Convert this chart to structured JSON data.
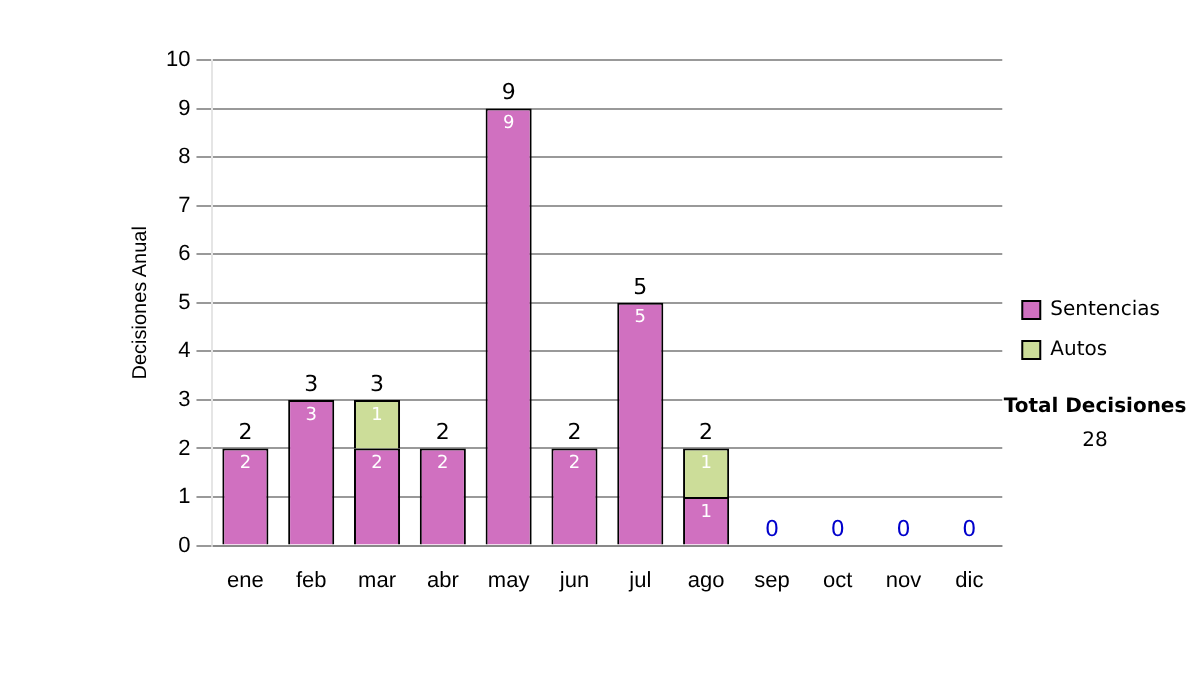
{
  "chart_data": {
    "type": "bar",
    "stacked": true,
    "ylabel": "Decisiones Anual",
    "categories": [
      "ene",
      "feb",
      "mar",
      "abr",
      "may",
      "jun",
      "jul",
      "ago",
      "sep",
      "oct",
      "nov",
      "dic"
    ],
    "series": [
      {
        "name": "Sentencias",
        "color": "#d070c0",
        "values": [
          2,
          3,
          2,
          2,
          9,
          2,
          5,
          1,
          0,
          0,
          0,
          0
        ],
        "value_labels": [
          "2",
          "3",
          "2",
          "2",
          "9",
          "2",
          "5",
          "1",
          null,
          null,
          null,
          null
        ]
      },
      {
        "name": "Autos",
        "color": "#ccdd99",
        "values": [
          0,
          0,
          1,
          0,
          0,
          0,
          0,
          1,
          0,
          0,
          0,
          0
        ],
        "value_labels": [
          null,
          null,
          "1",
          null,
          null,
          null,
          null,
          "1",
          null,
          null,
          null,
          null
        ]
      }
    ],
    "totals": [
      "2",
      "3",
      "3",
      "2",
      "9",
      "2",
      "5",
      "2",
      "0",
      "0",
      "0",
      "0"
    ],
    "ylim": [
      0,
      10
    ],
    "yticks": [
      0,
      1,
      2,
      3,
      4,
      5,
      6,
      7,
      8,
      9,
      10
    ],
    "grid": "y",
    "legend": "right",
    "annotations": [
      "Total Decisiones",
      "28"
    ]
  }
}
